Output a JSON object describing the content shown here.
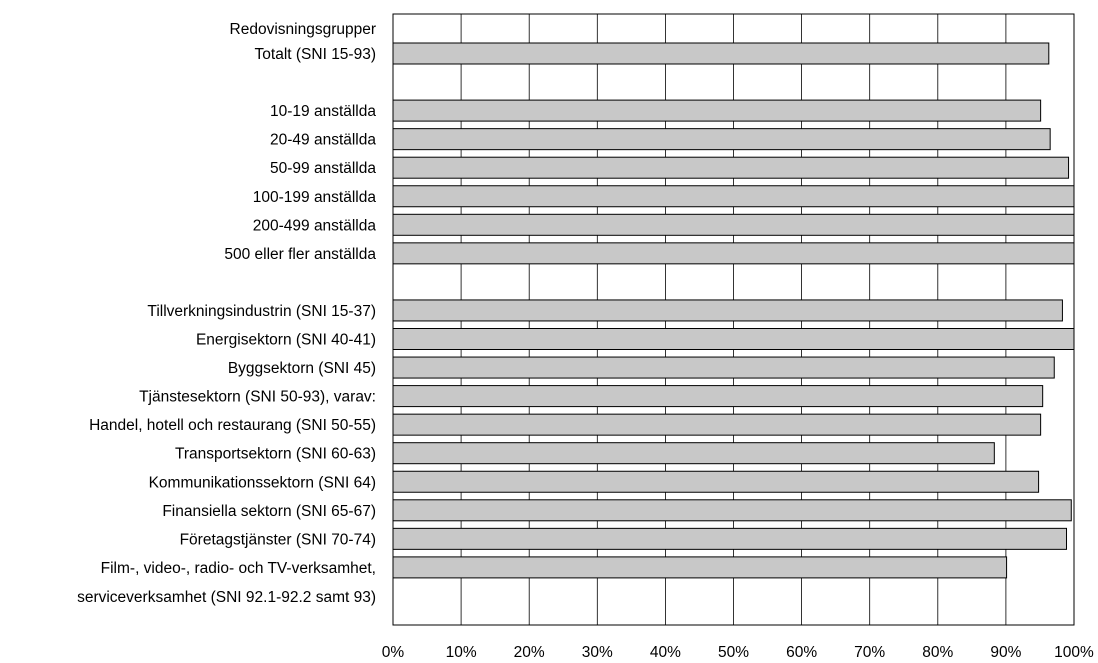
{
  "chart_data": {
    "type": "bar",
    "orientation": "horizontal",
    "title": "",
    "xlabel": "",
    "ylabel": "",
    "xlim": [
      0,
      100
    ],
    "grid": true,
    "legend": "none",
    "bar_color": "#c8c8c8",
    "x_ticks": [
      "0%",
      "10%",
      "20%",
      "30%",
      "40%",
      "50%",
      "60%",
      "70%",
      "80%",
      "90%",
      "100%"
    ],
    "header_label": "Redovisningsgrupper",
    "categories": [
      {
        "label": [
          "Totalt (SNI 15-93)"
        ],
        "value": 96.3
      },
      {
        "label": [],
        "value": null
      },
      {
        "label": [
          "10-19 anställda"
        ],
        "value": 95.1
      },
      {
        "label": [
          "20-49 anställda"
        ],
        "value": 96.5
      },
      {
        "label": [
          "50-99 anställda"
        ],
        "value": 99.2
      },
      {
        "label": [
          "100-199 anställda"
        ],
        "value": 100
      },
      {
        "label": [
          "200-499 anställda"
        ],
        "value": 100
      },
      {
        "label": [
          "500 eller fler anställda"
        ],
        "value": 100
      },
      {
        "label": [],
        "value": null
      },
      {
        "label": [
          "Tillverkningsindustrin (SNI 15-37)"
        ],
        "value": 98.3
      },
      {
        "label": [
          "Energisektorn (SNI 40-41)"
        ],
        "value": 100
      },
      {
        "label": [
          "Byggsektorn (SNI 45)"
        ],
        "value": 97.1
      },
      {
        "label": [
          "Tjänstesektorn (SNI 50-93), varav:"
        ],
        "value": 95.4
      },
      {
        "label": [
          "Handel, hotell och restaurang (SNI 50-55)"
        ],
        "value": 95.1
      },
      {
        "label": [
          "Transportsektorn (SNI 60-63)"
        ],
        "value": 88.3
      },
      {
        "label": [
          "Kommunikationssektorn (SNI 64)"
        ],
        "value": 94.8
      },
      {
        "label": [
          "Finansiella sektorn (SNI 65-67)"
        ],
        "value": 99.6
      },
      {
        "label": [
          "Företagstjänster (SNI 70-74)"
        ],
        "value": 98.9
      },
      {
        "label": [
          "Film-, video-, radio- och TV-verksamhet,",
          "serviceverksamhet (SNI 92.1-92.2 samt 93)"
        ],
        "value": 90.1
      }
    ]
  }
}
